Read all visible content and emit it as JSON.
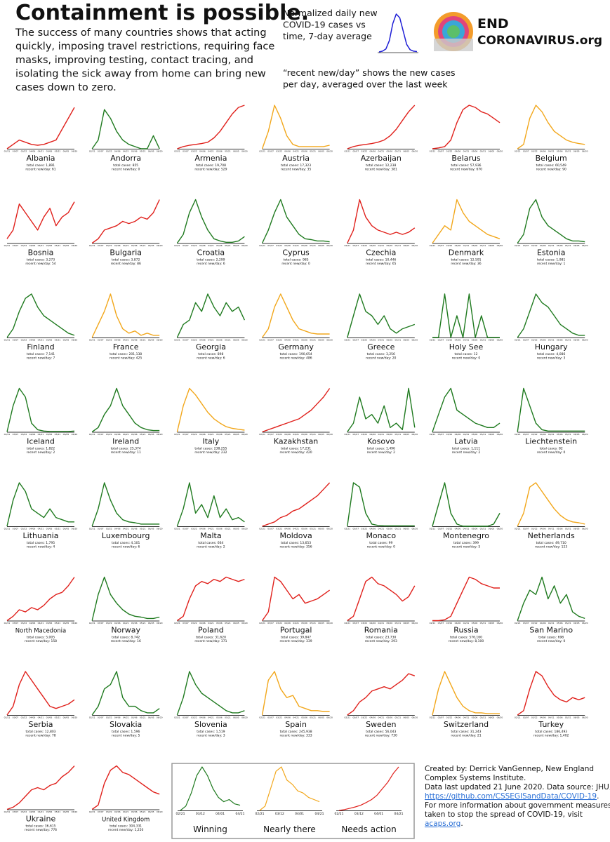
{
  "header": {
    "title": "Containment is possible.",
    "lines": [
      "The success of many countries shows that acting",
      "quickly, imposing travel restrictions, requiring face",
      "masks, improving testing, contact tracing, and",
      "isolating the sick away from home can bring new",
      "cases down to zero."
    ],
    "explain": [
      "Normalized daily new",
      "COVID-19 cases vs",
      "time, 7-day average"
    ],
    "explain_curve": {
      "color": "#1f1fd6",
      "values": [
        0,
        2,
        8,
        30,
        75,
        100,
        90,
        55,
        20,
        6,
        2,
        1
      ]
    },
    "note": [
      "“recent new/day” shows the new cases",
      "per day, averaged over the last week"
    ],
    "logo": [
      "END",
      "CORONAVIRUS.org"
    ]
  },
  "ylim": [
    0,
    100
  ],
  "dates": [
    "02/21",
    "03/07",
    "03/22",
    "04/06",
    "04/21",
    "05/06",
    "05/21",
    "06/05",
    "06/20"
  ],
  "countries": [
    {
      "name": "Albania",
      "color": "#e0201b",
      "total": "total cases: 1,891",
      "recent": "recent new/day: 61",
      "values": [
        0,
        10,
        20,
        15,
        10,
        8,
        10,
        15,
        20,
        45,
        70,
        95
      ]
    },
    {
      "name": "Andorra",
      "color": "#1f7a1f",
      "total": "total cases: 855",
      "recent": "recent new/day: 0",
      "values": [
        0,
        20,
        90,
        70,
        40,
        20,
        10,
        5,
        0,
        0,
        30,
        0
      ]
    },
    {
      "name": "Armenia",
      "color": "#e0201b",
      "total": "total cases: 19,708",
      "recent": "recent new/day: 529",
      "values": [
        0,
        5,
        8,
        10,
        12,
        15,
        25,
        40,
        60,
        80,
        95,
        100
      ]
    },
    {
      "name": "Austria",
      "color": "#f2a71b",
      "total": "total cases: 17,323",
      "recent": "recent new/day: 35",
      "values": [
        0,
        40,
        100,
        70,
        30,
        10,
        5,
        5,
        5,
        5,
        5,
        8
      ]
    },
    {
      "name": "Azerbaijan",
      "color": "#e0201b",
      "total": "total cases: 12,238",
      "recent": "recent new/day: 381",
      "values": [
        0,
        5,
        8,
        10,
        12,
        15,
        20,
        30,
        45,
        65,
        85,
        100
      ]
    },
    {
      "name": "Belarus",
      "color": "#e0201b",
      "total": "total cases: 57,936",
      "recent": "recent new/day: 670",
      "values": [
        0,
        2,
        5,
        20,
        60,
        90,
        100,
        95,
        85,
        80,
        70,
        60
      ]
    },
    {
      "name": "Belgium",
      "color": "#f2a71b",
      "total": "total cases: 60,549",
      "recent": "recent new/day: 90",
      "values": [
        0,
        10,
        70,
        100,
        85,
        60,
        40,
        30,
        20,
        15,
        12,
        10
      ]
    },
    {
      "name": "Bosnia",
      "color": "#e0201b",
      "total": "total cases: 3,273",
      "recent": "recent new/day: 54",
      "values": [
        10,
        30,
        90,
        70,
        50,
        30,
        60,
        80,
        40,
        60,
        70,
        95
      ]
    },
    {
      "name": "Bulgaria",
      "color": "#e0201b",
      "total": "total cases: 3,872",
      "recent": "recent new/day: 86",
      "values": [
        0,
        10,
        30,
        35,
        40,
        50,
        45,
        50,
        60,
        55,
        70,
        100
      ]
    },
    {
      "name": "Croatia",
      "color": "#1f7a1f",
      "total": "total cases: 2,299",
      "recent": "recent new/day: 6",
      "values": [
        0,
        20,
        70,
        100,
        60,
        30,
        10,
        5,
        2,
        2,
        5,
        15
      ]
    },
    {
      "name": "Cyprus",
      "color": "#1f7a1f",
      "total": "total cases: 985",
      "recent": "recent new/day: 0",
      "values": [
        0,
        30,
        70,
        100,
        60,
        40,
        20,
        10,
        8,
        5,
        5,
        3
      ]
    },
    {
      "name": "Czechia",
      "color": "#e0201b",
      "total": "total cases: 10,446",
      "recent": "recent new/day: 65",
      "values": [
        0,
        30,
        100,
        60,
        40,
        30,
        25,
        20,
        25,
        20,
        25,
        35
      ]
    },
    {
      "name": "Denmark",
      "color": "#f2a71b",
      "total": "total cases: 12,591",
      "recent": "recent new/day: 36",
      "values": [
        0,
        20,
        40,
        30,
        100,
        70,
        50,
        40,
        30,
        20,
        15,
        10
      ]
    },
    {
      "name": "Estonia",
      "color": "#1f7a1f",
      "total": "total cases: 1,981",
      "recent": "recent new/day: 1",
      "values": [
        0,
        20,
        80,
        100,
        60,
        40,
        30,
        20,
        10,
        5,
        5,
        3
      ]
    },
    {
      "name": "Finland",
      "color": "#1f7a1f",
      "total": "total cases: 7,141",
      "recent": "recent new/day: 7",
      "values": [
        0,
        20,
        60,
        90,
        100,
        70,
        50,
        40,
        30,
        20,
        10,
        5
      ]
    },
    {
      "name": "France",
      "color": "#f2a71b",
      "total": "total cases: 201,138",
      "recent": "recent new/day: 425",
      "values": [
        0,
        30,
        60,
        100,
        50,
        20,
        10,
        15,
        5,
        10,
        5,
        5
      ]
    },
    {
      "name": "Georgia",
      "color": "#1f7a1f",
      "total": "total cases: 898",
      "recent": "recent new/day: 6",
      "values": [
        0,
        30,
        40,
        80,
        60,
        100,
        70,
        50,
        80,
        60,
        70,
        40
      ]
    },
    {
      "name": "Germany",
      "color": "#f2a71b",
      "total": "total cases: 190,654",
      "recent": "recent new/day: 486",
      "values": [
        0,
        20,
        70,
        100,
        70,
        40,
        20,
        15,
        10,
        8,
        8,
        8
      ]
    },
    {
      "name": "Greece",
      "color": "#1f7a1f",
      "total": "total cases: 3,256",
      "recent": "recent new/day: 20",
      "values": [
        0,
        50,
        100,
        60,
        50,
        30,
        50,
        20,
        10,
        20,
        25,
        30
      ]
    },
    {
      "name": "Holy See",
      "color": "#1f7a1f",
      "total": "total cases: 12",
      "recent": "recent new/day: 0",
      "values": [
        0,
        0,
        100,
        0,
        50,
        0,
        100,
        0,
        50,
        0,
        0,
        0
      ]
    },
    {
      "name": "Hungary",
      "color": "#1f7a1f",
      "total": "total cases: 4,086",
      "recent": "recent new/day: 3",
      "values": [
        0,
        20,
        60,
        100,
        80,
        70,
        50,
        30,
        20,
        10,
        5,
        5
      ]
    },
    {
      "name": "Iceland",
      "color": "#1f7a1f",
      "total": "total cases: 1,822",
      "recent": "recent new/day: 2",
      "values": [
        0,
        60,
        100,
        80,
        20,
        5,
        2,
        1,
        1,
        1,
        1,
        2
      ]
    },
    {
      "name": "Ireland",
      "color": "#1f7a1f",
      "total": "total cases: 25,374",
      "recent": "recent new/day: 11",
      "values": [
        0,
        10,
        40,
        60,
        100,
        60,
        40,
        20,
        10,
        5,
        3,
        3
      ]
    },
    {
      "name": "Italy",
      "color": "#f2a71b",
      "total": "total cases: 238,255",
      "recent": "recent new/day: 232",
      "values": [
        0,
        60,
        100,
        85,
        65,
        45,
        30,
        20,
        12,
        8,
        6,
        4
      ]
    },
    {
      "name": "Kazakhstan",
      "color": "#e0201b",
      "total": "total cases: 17,231",
      "recent": "recent new/day: 420",
      "values": [
        0,
        5,
        10,
        15,
        20,
        25,
        30,
        40,
        50,
        65,
        80,
        100
      ]
    },
    {
      "name": "Kosovo",
      "color": "#1f7a1f",
      "total": "total cases: 1,496",
      "recent": "recent new/day: 2",
      "values": [
        0,
        20,
        80,
        30,
        40,
        20,
        60,
        10,
        20,
        5,
        100,
        10
      ]
    },
    {
      "name": "Latvia",
      "color": "#1f7a1f",
      "total": "total cases: 1,111",
      "recent": "recent new/day: 2",
      "values": [
        0,
        40,
        80,
        100,
        50,
        40,
        30,
        20,
        15,
        10,
        10,
        20
      ]
    },
    {
      "name": "Liechtenstein",
      "color": "#1f7a1f",
      "total": "total cases: 82",
      "recent": "recent new/day: 0",
      "values": [
        0,
        100,
        60,
        20,
        5,
        2,
        2,
        2,
        2,
        2,
        2,
        2
      ]
    },
    {
      "name": "Lithuania",
      "color": "#1f7a1f",
      "total": "total cases: 1,795",
      "recent": "recent new/day: 4",
      "values": [
        0,
        60,
        100,
        80,
        40,
        30,
        20,
        40,
        20,
        15,
        10,
        10
      ]
    },
    {
      "name": "Luxembourg",
      "color": "#1f7a1f",
      "total": "total cases: 4,101",
      "recent": "recent new/day: 6",
      "values": [
        0,
        40,
        100,
        60,
        30,
        15,
        10,
        8,
        5,
        5,
        5,
        5
      ]
    },
    {
      "name": "Malta",
      "color": "#1f7a1f",
      "total": "total cases: 664",
      "recent": "recent new/day: 2",
      "values": [
        0,
        40,
        100,
        30,
        50,
        20,
        70,
        20,
        40,
        15,
        20,
        10
      ]
    },
    {
      "name": "Moldova",
      "color": "#e0201b",
      "total": "total cases: 13,653",
      "recent": "recent new/day: 356",
      "values": [
        0,
        5,
        10,
        20,
        25,
        35,
        40,
        50,
        60,
        70,
        85,
        100
      ]
    },
    {
      "name": "Monaco",
      "color": "#1f7a1f",
      "total": "total cases: 99",
      "recent": "recent new/day: 0",
      "values": [
        0,
        100,
        90,
        30,
        5,
        2,
        1,
        1,
        1,
        1,
        1,
        1
      ]
    },
    {
      "name": "Montenegro",
      "color": "#1f7a1f",
      "total": "total cases: 399",
      "recent": "recent new/day: 5",
      "values": [
        0,
        50,
        100,
        30,
        5,
        0,
        0,
        0,
        0,
        0,
        5,
        30
      ]
    },
    {
      "name": "Netherlands",
      "color": "#f2a71b",
      "total": "total cases: 49,710",
      "recent": "recent new/day: 123",
      "values": [
        0,
        30,
        90,
        100,
        80,
        60,
        40,
        25,
        15,
        10,
        8,
        5
      ]
    },
    {
      "name": "North Macedonia",
      "color": "#e0201b",
      "total": "total cases: 5,005",
      "recent": "recent new/day: 158",
      "values": [
        0,
        10,
        25,
        20,
        30,
        25,
        35,
        50,
        60,
        65,
        80,
        100
      ]
    },
    {
      "name": "Norway",
      "color": "#1f7a1f",
      "total": "total cases: 8,742",
      "recent": "recent new/day: 16",
      "values": [
        0,
        60,
        100,
        60,
        40,
        25,
        15,
        10,
        8,
        5,
        5,
        8
      ]
    },
    {
      "name": "Poland",
      "color": "#e0201b",
      "total": "total cases: 31,620",
      "recent": "recent new/day: 371",
      "values": [
        0,
        10,
        50,
        80,
        90,
        85,
        95,
        90,
        100,
        95,
        90,
        95
      ]
    },
    {
      "name": "Portugal",
      "color": "#e0201b",
      "total": "total cases: 39,847",
      "recent": "recent new/day: 339",
      "values": [
        0,
        20,
        100,
        90,
        70,
        50,
        60,
        40,
        45,
        50,
        60,
        70
      ]
    },
    {
      "name": "Romania",
      "color": "#e0201b",
      "total": "total cases: 23,730",
      "recent": "recent new/day: 293",
      "values": [
        0,
        10,
        50,
        90,
        100,
        85,
        80,
        70,
        60,
        45,
        55,
        80
      ]
    },
    {
      "name": "Russia",
      "color": "#e0201b",
      "total": "total cases: 576,160",
      "recent": "recent new/day: 8,100",
      "values": [
        0,
        0,
        2,
        10,
        40,
        70,
        100,
        95,
        85,
        80,
        75,
        75
      ]
    },
    {
      "name": "San Marino",
      "color": "#1f7a1f",
      "total": "total cases: 698",
      "recent": "recent new/day: 0",
      "values": [
        0,
        40,
        70,
        60,
        100,
        50,
        80,
        40,
        60,
        20,
        10,
        5
      ]
    },
    {
      "name": "Serbia",
      "color": "#e0201b",
      "total": "total cases: 12,803",
      "recent": "recent new/day: 78",
      "values": [
        0,
        20,
        70,
        100,
        80,
        60,
        40,
        20,
        15,
        20,
        25,
        35
      ]
    },
    {
      "name": "Slovakia",
      "color": "#1f7a1f",
      "total": "total cases: 1,596",
      "recent": "recent new/day: 5",
      "values": [
        0,
        20,
        60,
        70,
        100,
        40,
        20,
        20,
        10,
        5,
        5,
        15
      ]
    },
    {
      "name": "Slovenia",
      "color": "#1f7a1f",
      "total": "total cases: 1,519",
      "recent": "recent new/day: 3",
      "values": [
        0,
        40,
        100,
        70,
        50,
        40,
        30,
        20,
        10,
        5,
        5,
        10
      ]
    },
    {
      "name": "Spain",
      "color": "#f2a71b",
      "total": "total cases: 245,938",
      "recent": "recent new/day: 333",
      "values": [
        0,
        80,
        100,
        60,
        40,
        45,
        20,
        15,
        10,
        10,
        8,
        8
      ]
    },
    {
      "name": "Sweden",
      "color": "#e0201b",
      "total": "total cases: 56,043",
      "recent": "recent new/day: 730",
      "values": [
        0,
        10,
        30,
        40,
        55,
        60,
        65,
        60,
        70,
        80,
        95,
        90
      ]
    },
    {
      "name": "Switzerland",
      "color": "#f2a71b",
      "total": "total cases: 31,243",
      "recent": "recent new/day: 21",
      "values": [
        0,
        60,
        100,
        70,
        40,
        20,
        10,
        5,
        5,
        3,
        3,
        3
      ]
    },
    {
      "name": "Turkey",
      "color": "#e0201b",
      "total": "total cases: 186,493",
      "recent": "recent new/day: 1,402",
      "values": [
        0,
        10,
        60,
        100,
        90,
        65,
        45,
        35,
        30,
        40,
        35,
        40
      ]
    },
    {
      "name": "Ukraine",
      "color": "#e0201b",
      "total": "total cases: 36,615",
      "recent": "recent new/day: 776",
      "values": [
        0,
        5,
        15,
        30,
        45,
        50,
        45,
        55,
        60,
        75,
        85,
        100
      ]
    },
    {
      "name": "United Kingdom",
      "color": "#e0201b",
      "total": "total cases: 304,331",
      "recent": "recent new/day: 1,250",
      "values": [
        0,
        10,
        60,
        90,
        100,
        85,
        80,
        70,
        60,
        50,
        40,
        35
      ]
    }
  ],
  "key": {
    "dates": [
      "02/21",
      "03/12",
      "04/01",
      "04/21"
    ],
    "items": [
      {
        "name": "Winning",
        "color": "#1f7a1f",
        "values": [
          0,
          10,
          40,
          80,
          100,
          80,
          50,
          30,
          20,
          25,
          15,
          12
        ]
      },
      {
        "name": "Nearly there",
        "color": "#f2a71b",
        "values": [
          0,
          10,
          50,
          90,
          100,
          70,
          60,
          45,
          40,
          30,
          25,
          20
        ]
      },
      {
        "name": "Needs action",
        "color": "#e0201b",
        "values": [
          0,
          2,
          5,
          8,
          12,
          18,
          25,
          35,
          50,
          65,
          85,
          100
        ]
      }
    ]
  },
  "credits": {
    "lines": [
      "Created by: Derrick VanGennep, New England",
      "Complex Systems Institute.",
      "Data last updated 21 June 2020. Data source: JHU,"
    ],
    "source_link": "https://github.com/CSSEGISandData/COVID-19",
    "period": ".",
    "more": [
      "For more information about government measures",
      "taken to stop the spread of COVID-19, visit"
    ],
    "acaps_link": "acaps.org"
  }
}
